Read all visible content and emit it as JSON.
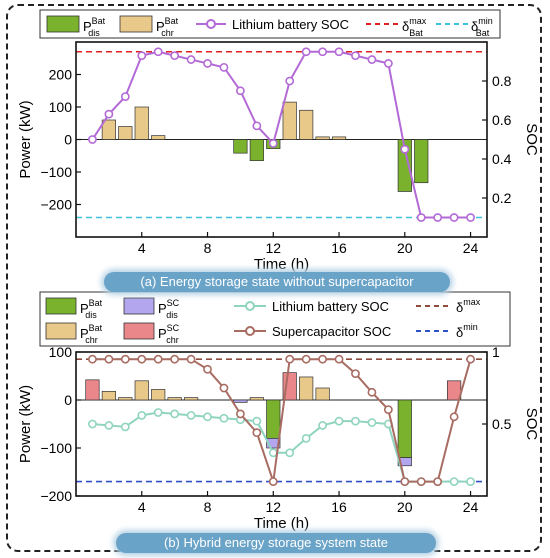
{
  "colors": {
    "dis_bat": "#7ab22e",
    "chr_bat": "#e9c98a",
    "soc_line_a": "#b36ad6",
    "max_line_a": "#e02020",
    "min_line_a": "#3ec0e0",
    "dis_sc": "#b3a6ee",
    "chr_sc": "#e9878a",
    "soc_line_bat_b": "#8fd4bf",
    "soc_line_sc_b": "#a86c62",
    "max_line_b": "#8e4c3e",
    "min_line_b": "#3050c8"
  },
  "panel_a": {
    "caption": "(a) Energy storage state without supercapacitor",
    "legend": {
      "dis_main": "P",
      "dis_sup": "Bat",
      "dis_sub": "dis",
      "chr_main": "P",
      "chr_sup": "Bat",
      "chr_sub": "chr",
      "soc": "Lithium battery SOC",
      "max_main": "δ",
      "max_sup": "max",
      "max_sub": "Bat",
      "min_main": "δ",
      "min_sup": "min",
      "min_sub": "Bat"
    }
  },
  "panel_b": {
    "caption": "(b) Hybrid energy storage system state",
    "legend": {
      "dis_bat_main": "P",
      "dis_bat_sup": "Bat",
      "dis_bat_sub": "dis",
      "dis_sc_main": "P",
      "dis_sc_sup": "SC",
      "dis_sc_sub": "dis",
      "chr_bat_main": "P",
      "chr_bat_sup": "Bat",
      "chr_bat_sub": "chr",
      "chr_sc_main": "P",
      "chr_sc_sup": "SC",
      "chr_sc_sub": "chr",
      "soc_bat": "Lithium battery SOC",
      "soc_sc": "Supercapacitor SOC",
      "max_main": "δ",
      "max_sup": "max",
      "min_main": "δ",
      "min_sup": "min"
    }
  },
  "chart_data": [
    {
      "type": "bar",
      "xlabel": "Time (h)",
      "ylabel": "Power (kW)",
      "y2label": "SOC",
      "xlim": [
        0,
        25
      ],
      "ylim": [
        -300,
        300
      ],
      "y2lim": [
        0,
        1
      ],
      "xticks": [
        4,
        8,
        12,
        16,
        20,
        24
      ],
      "yticks": [
        -200,
        -100,
        0,
        100,
        200
      ],
      "y2ticks": [
        0.2,
        0.4,
        0.6,
        0.8
      ],
      "grid": false,
      "legend_position": "top",
      "x": [
        1,
        2,
        3,
        4,
        5,
        6,
        7,
        8,
        9,
        10,
        11,
        12,
        13,
        14,
        15,
        16,
        17,
        18,
        19,
        20,
        21,
        22,
        23,
        24
      ],
      "series": [
        {
          "name": "P dis Bat",
          "kind": "bar",
          "values": [
            0,
            0,
            0,
            0,
            0,
            0,
            0,
            0,
            0,
            -42,
            -65,
            -28,
            0,
            0,
            0,
            0,
            0,
            0,
            0,
            -160,
            -133,
            0,
            0,
            0
          ]
        },
        {
          "name": "P chr Bat",
          "kind": "bar",
          "values": [
            0,
            60,
            40,
            100,
            12,
            0,
            0,
            0,
            0,
            0,
            0,
            0,
            115,
            90,
            8,
            8,
            0,
            0,
            0,
            0,
            0,
            0,
            0,
            0
          ]
        },
        {
          "name": "Lithium battery SOC",
          "kind": "line",
          "axis": "right",
          "values": [
            0.5,
            0.63,
            0.72,
            0.93,
            0.95,
            0.93,
            0.91,
            0.89,
            0.87,
            0.75,
            0.57,
            0.48,
            0.8,
            0.95,
            0.95,
            0.95,
            0.93,
            0.91,
            0.89,
            0.45,
            0.1,
            0.1,
            0.1,
            0.1
          ]
        },
        {
          "name": "δ max Bat",
          "kind": "hline",
          "axis": "right",
          "value": 0.95
        },
        {
          "name": "δ min Bat",
          "kind": "hline",
          "axis": "right",
          "value": 0.1
        }
      ]
    },
    {
      "type": "bar",
      "xlabel": "Time (h)",
      "ylabel": "Power (kW)",
      "y2label": "SOC",
      "xlim": [
        0,
        25
      ],
      "ylim": [
        -200,
        100
      ],
      "y2lim": [
        0,
        1
      ],
      "xticks": [
        4,
        8,
        12,
        16,
        20,
        24
      ],
      "yticks": [
        -200,
        -100,
        0,
        100
      ],
      "y2ticks": [
        0.5,
        1
      ],
      "grid": false,
      "legend_position": "top",
      "x": [
        1,
        2,
        3,
        4,
        5,
        6,
        7,
        8,
        9,
        10,
        11,
        12,
        13,
        14,
        15,
        16,
        17,
        18,
        19,
        20,
        21,
        22,
        23,
        24
      ],
      "series": [
        {
          "name": "P dis Bat",
          "kind": "bar",
          "values": [
            0,
            0,
            0,
            0,
            0,
            0,
            0,
            0,
            0,
            0,
            0,
            -80,
            0,
            0,
            0,
            0,
            0,
            0,
            0,
            -120,
            0,
            0,
            0,
            0
          ]
        },
        {
          "name": "P dis SC",
          "kind": "bar",
          "values": [
            0,
            0,
            0,
            0,
            0,
            0,
            0,
            0,
            0,
            -5,
            0,
            -20,
            0,
            0,
            0,
            0,
            0,
            0,
            0,
            -17,
            0,
            0,
            0,
            0
          ]
        },
        {
          "name": "P chr Bat",
          "kind": "bar",
          "values": [
            0,
            18,
            5,
            40,
            22,
            5,
            5,
            0,
            0,
            0,
            5,
            0,
            0,
            48,
            25,
            0,
            0,
            0,
            0,
            0,
            0,
            0,
            0,
            0
          ]
        },
        {
          "name": "P chr SC",
          "kind": "bar",
          "values": [
            42,
            0,
            0,
            0,
            0,
            0,
            0,
            0,
            0,
            0,
            0,
            0,
            57,
            0,
            0,
            0,
            0,
            0,
            0,
            0,
            0,
            0,
            40,
            0
          ]
        },
        {
          "name": "Lithium battery SOC",
          "kind": "line",
          "axis": "right",
          "values": [
            0.5,
            0.49,
            0.48,
            0.56,
            0.58,
            0.57,
            0.56,
            0.55,
            0.54,
            0.53,
            0.52,
            0.3,
            0.3,
            0.4,
            0.49,
            0.52,
            0.52,
            0.51,
            0.5,
            0.1,
            0.1,
            0.1,
            0.1,
            0.1
          ]
        },
        {
          "name": "Supercapacitor SOC",
          "kind": "line",
          "axis": "right",
          "values": [
            0.95,
            0.95,
            0.95,
            0.95,
            0.95,
            0.95,
            0.95,
            0.88,
            0.75,
            0.57,
            0.44,
            0.1,
            0.95,
            0.95,
            0.95,
            0.95,
            0.85,
            0.72,
            0.6,
            0.1,
            0.1,
            0.1,
            0.55,
            0.95
          ]
        },
        {
          "name": "δ max",
          "kind": "hline",
          "axis": "right",
          "value": 0.95
        },
        {
          "name": "δ min",
          "kind": "hline",
          "axis": "right",
          "value": 0.1
        }
      ]
    }
  ]
}
